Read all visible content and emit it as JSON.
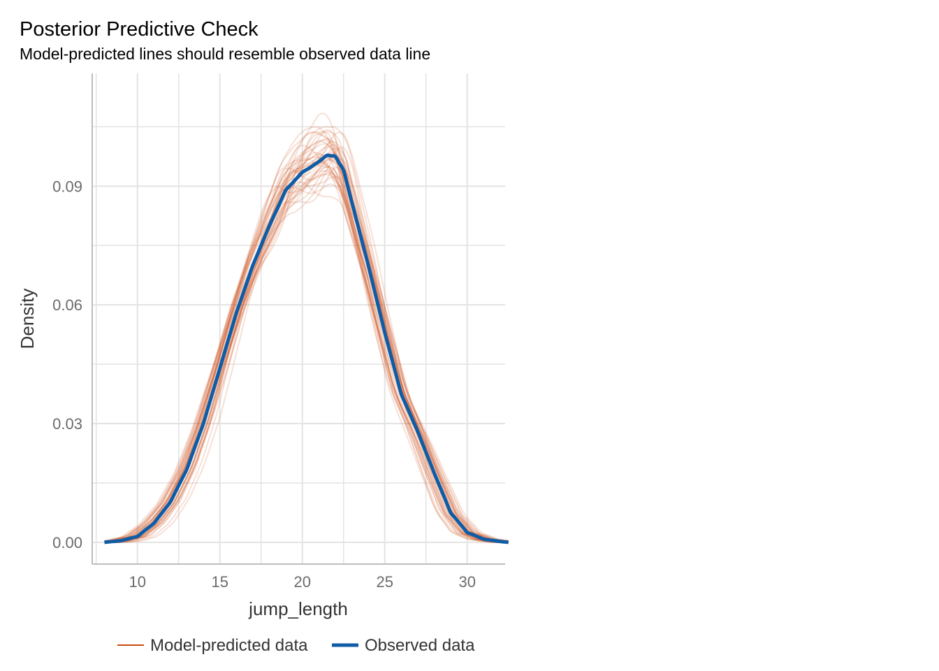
{
  "chart_data": {
    "type": "line",
    "title": "Posterior Predictive Check",
    "subtitle": "Model-predicted lines should resemble observed data line",
    "xlabel": "jump_length",
    "ylabel": "Density",
    "xlim": [
      7.3,
      32.3
    ],
    "ylim": [
      -0.0055,
      0.1185
    ],
    "x_ticks": [
      10,
      15,
      20,
      25,
      30
    ],
    "x_tick_labels": [
      "10",
      "15",
      "20",
      "25",
      "30"
    ],
    "y_ticks": [
      0.0,
      0.03,
      0.06,
      0.09
    ],
    "y_tick_labels": [
      "0.00",
      "0.03",
      "0.06",
      "0.09"
    ],
    "grid": true,
    "legend_position": "bottom",
    "colors": {
      "model_predicted": "#c94a10",
      "observed": "#0f5ca6",
      "grid": "#e3e3e3",
      "axis": "#bdbdbd"
    },
    "series": [
      {
        "name": "Observed data",
        "x": [
          8.0,
          9.0,
          10.0,
          11.0,
          12.0,
          13.0,
          14.0,
          15.0,
          16.0,
          17.0,
          18.0,
          19.0,
          20.0,
          20.5,
          21.0,
          21.5,
          22.0,
          22.5,
          23.0,
          24.0,
          25.0,
          26.0,
          27.0,
          28.0,
          29.0,
          30.0,
          31.0,
          32.0,
          32.5
        ],
        "y": [
          0.0,
          0.0004,
          0.0015,
          0.0048,
          0.0102,
          0.0185,
          0.03,
          0.044,
          0.058,
          0.07,
          0.08,
          0.089,
          0.0935,
          0.0948,
          0.0962,
          0.0978,
          0.0975,
          0.094,
          0.086,
          0.07,
          0.053,
          0.0375,
          0.028,
          0.0175,
          0.0075,
          0.0025,
          0.0008,
          0.0002,
          0.0
        ]
      }
    ],
    "replicates": {
      "name": "Model-predicted data",
      "count": 40,
      "x_range": [
        8.0,
        32.5
      ]
    }
  },
  "legend": {
    "items": [
      {
        "label": "Model-predicted data"
      },
      {
        "label": "Observed data"
      }
    ]
  }
}
